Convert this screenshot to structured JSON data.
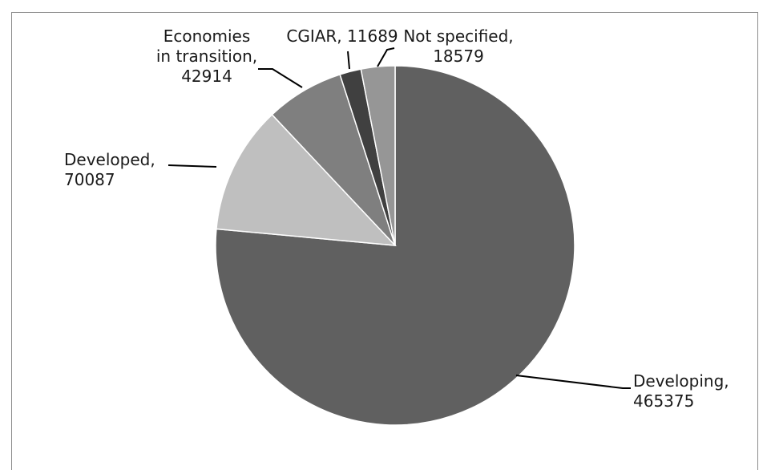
{
  "chart_data": {
    "type": "pie",
    "title": "",
    "start": "12 o'clock, clockwise",
    "slices": [
      {
        "label": "Developing",
        "value": 465375,
        "color": "#606060"
      },
      {
        "label": "Developed",
        "value": 70087,
        "color": "#bfbfbf"
      },
      {
        "label": "Economies in transition",
        "value": 42914,
        "color": "#7f7f7f"
      },
      {
        "label": "CGIAR",
        "value": 11689,
        "color": "#404040"
      },
      {
        "label": "Not specified",
        "value": 18579,
        "color": "#969696"
      }
    ],
    "data_labels": [
      {
        "lines": [
          "Developing,",
          "465375"
        ]
      },
      {
        "lines": [
          "Developed,",
          "70087"
        ]
      },
      {
        "lines": [
          "Economies",
          "in transition,",
          "42914"
        ]
      },
      {
        "lines": [
          "CGIAR, 11689"
        ]
      },
      {
        "lines": [
          "Not specified,",
          "18579"
        ]
      }
    ]
  }
}
